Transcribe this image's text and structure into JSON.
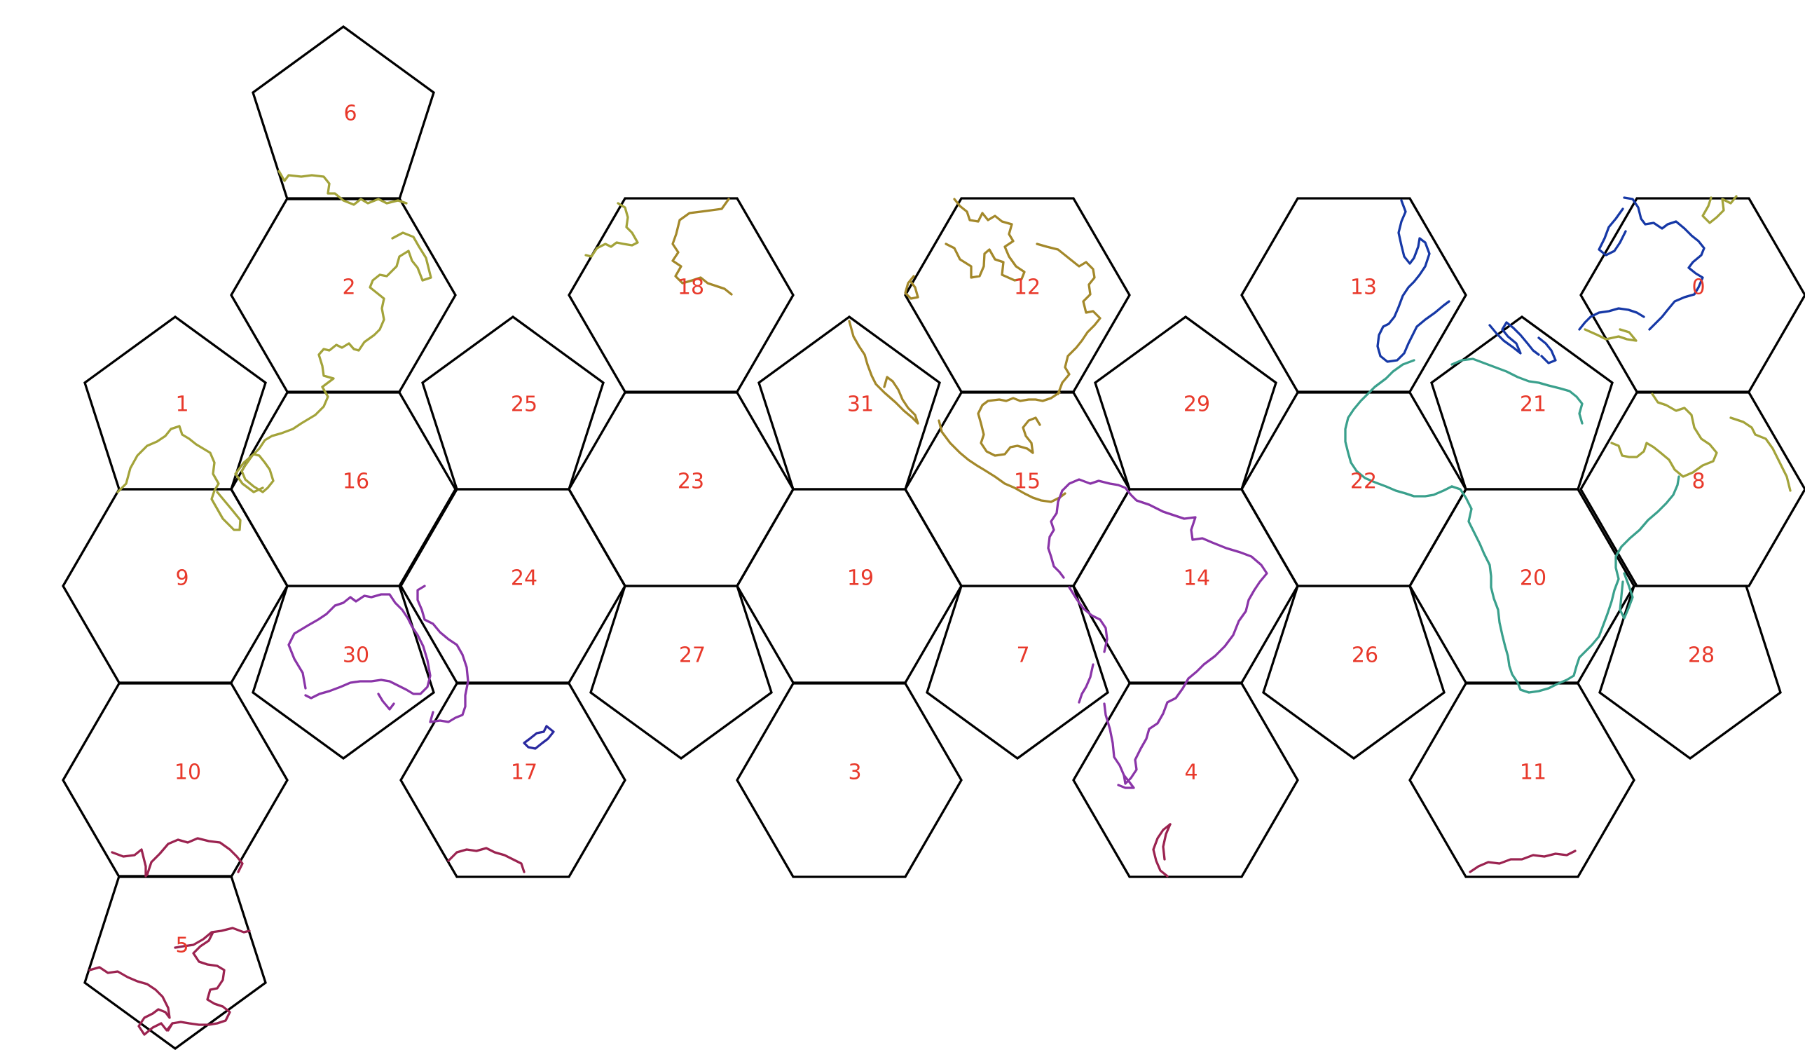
{
  "colors": {
    "outline": "#000000",
    "label": "#e8392b",
    "coast_eurasia": "#a3a33a",
    "coast_north_america": "#a3882a",
    "coast_south_america": "#8a35a8",
    "coast_africa": "#3aa08c",
    "coast_europe": "#1638a6",
    "coast_antarctica": "#9b2350",
    "coast_oceania_nz": "#2a2aa0"
  },
  "cells": [
    {
      "id": "0",
      "label": "0",
      "shape": "hexagon"
    },
    {
      "id": "1",
      "label": "1",
      "shape": "pentagon"
    },
    {
      "id": "2",
      "label": "2",
      "shape": "hexagon"
    },
    {
      "id": "3",
      "label": "3",
      "shape": "hexagon"
    },
    {
      "id": "4",
      "label": "4",
      "shape": "hexagon"
    },
    {
      "id": "5",
      "label": "5",
      "shape": "pentagon"
    },
    {
      "id": "6",
      "label": "6",
      "shape": "pentagon"
    },
    {
      "id": "7",
      "label": "7",
      "shape": "pentagon"
    },
    {
      "id": "8",
      "label": "8",
      "shape": "hexagon"
    },
    {
      "id": "9",
      "label": "9",
      "shape": "hexagon"
    },
    {
      "id": "10",
      "label": "10",
      "shape": "hexagon"
    },
    {
      "id": "11",
      "label": "11",
      "shape": "hexagon"
    },
    {
      "id": "12",
      "label": "12",
      "shape": "hexagon"
    },
    {
      "id": "13",
      "label": "13",
      "shape": "hexagon"
    },
    {
      "id": "14",
      "label": "14",
      "shape": "hexagon"
    },
    {
      "id": "15",
      "label": "15",
      "shape": "hexagon"
    },
    {
      "id": "16",
      "label": "16",
      "shape": "hexagon"
    },
    {
      "id": "17",
      "label": "17",
      "shape": "hexagon"
    },
    {
      "id": "18",
      "label": "18",
      "shape": "hexagon"
    },
    {
      "id": "19",
      "label": "19",
      "shape": "hexagon"
    },
    {
      "id": "20",
      "label": "20",
      "shape": "hexagon"
    },
    {
      "id": "21",
      "label": "21",
      "shape": "pentagon"
    },
    {
      "id": "22",
      "label": "22",
      "shape": "hexagon"
    },
    {
      "id": "23",
      "label": "23",
      "shape": "hexagon"
    },
    {
      "id": "24",
      "label": "24",
      "shape": "hexagon"
    },
    {
      "id": "25",
      "label": "25",
      "shape": "pentagon"
    },
    {
      "id": "26",
      "label": "26",
      "shape": "pentagon"
    },
    {
      "id": "27",
      "label": "27",
      "shape": "pentagon"
    },
    {
      "id": "28",
      "label": "28",
      "shape": "pentagon"
    },
    {
      "id": "29",
      "label": "29",
      "shape": "pentagon"
    },
    {
      "id": "30",
      "label": "30",
      "shape": "pentagon"
    },
    {
      "id": "31",
      "label": "31",
      "shape": "pentagon"
    }
  ]
}
